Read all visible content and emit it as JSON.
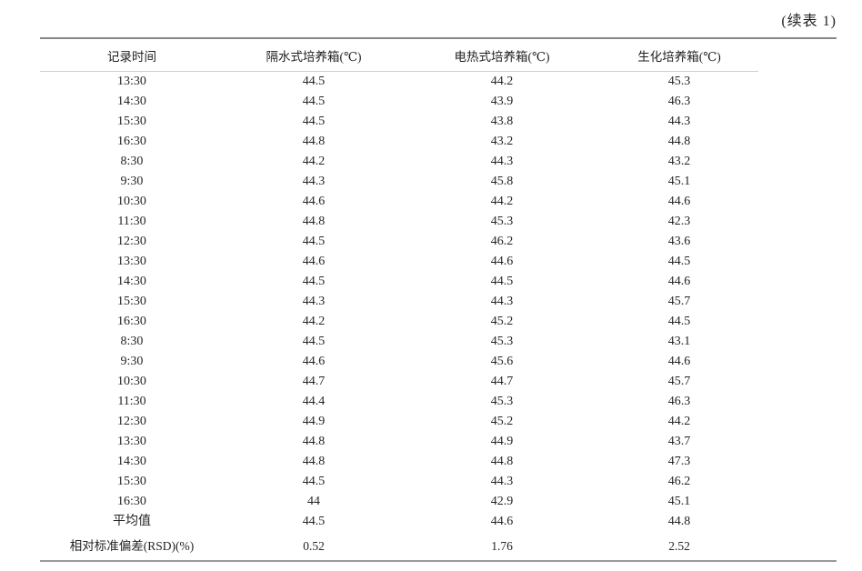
{
  "caption": "(续表 1)",
  "table": {
    "columns": [
      "记录时间",
      "隔水式培养箱(℃)",
      "电热式培养箱(℃)",
      "生化培养箱(℃)"
    ],
    "rows": [
      [
        "13:30",
        "44.5",
        "44.2",
        "45.3"
      ],
      [
        "14:30",
        "44.5",
        "43.9",
        "46.3"
      ],
      [
        "15:30",
        "44.5",
        "43.8",
        "44.3"
      ],
      [
        "16:30",
        "44.8",
        "43.2",
        "44.8"
      ],
      [
        "8:30",
        "44.2",
        "44.3",
        "43.2"
      ],
      [
        "9:30",
        "44.3",
        "45.8",
        "45.1"
      ],
      [
        "10:30",
        "44.6",
        "44.2",
        "44.6"
      ],
      [
        "11:30",
        "44.8",
        "45.3",
        "42.3"
      ],
      [
        "12:30",
        "44.5",
        "46.2",
        "43.6"
      ],
      [
        "13:30",
        "44.6",
        "44.6",
        "44.5"
      ],
      [
        "14:30",
        "44.5",
        "44.5",
        "44.6"
      ],
      [
        "15:30",
        "44.3",
        "44.3",
        "45.7"
      ],
      [
        "16:30",
        "44.2",
        "45.2",
        "44.5"
      ],
      [
        "8:30",
        "44.5",
        "45.3",
        "43.1"
      ],
      [
        "9:30",
        "44.6",
        "45.6",
        "44.6"
      ],
      [
        "10:30",
        "44.7",
        "44.7",
        "45.7"
      ],
      [
        "11:30",
        "44.4",
        "45.3",
        "46.3"
      ],
      [
        "12:30",
        "44.9",
        "45.2",
        "44.2"
      ],
      [
        "13:30",
        "44.8",
        "44.9",
        "43.7"
      ],
      [
        "14:30",
        "44.8",
        "44.8",
        "47.3"
      ],
      [
        "15:30",
        "44.5",
        "44.3",
        "46.2"
      ],
      [
        "16:30",
        "44",
        "42.9",
        "45.1"
      ]
    ],
    "summary_rows": [
      [
        "平均值",
        "44.5",
        "44.6",
        "44.8"
      ],
      [
        "相对标准偏差(RSD)(%)",
        "0.52",
        "1.76",
        "2.52"
      ]
    ]
  },
  "colors": {
    "rule_top": "#878787",
    "rule_header": "#cfcfcf",
    "rule_bottom": "#9a9a9a",
    "text": "#232323"
  }
}
